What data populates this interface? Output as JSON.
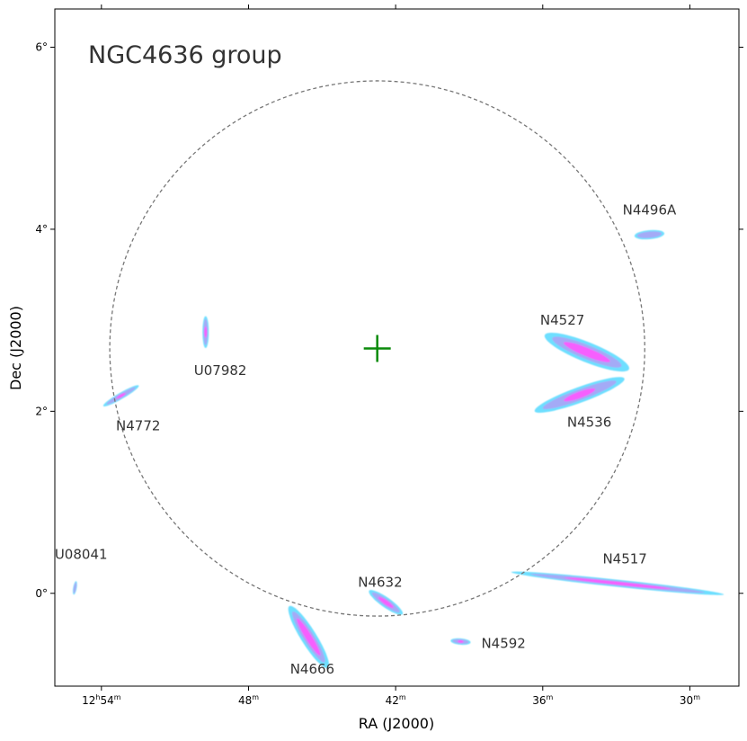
{
  "chart_data": {
    "type": "scatter",
    "title": "NGC4636 group",
    "xlabel": "RA (J2000)",
    "ylabel": "Dec (J2000)",
    "xlim_minutes": [
      55.9,
      28.0
    ],
    "ylim_deg": [
      -1.02,
      6.42
    ],
    "x_ticks": [
      {
        "value": 54,
        "label_main": "12",
        "label_h": "h",
        "label_min": "54",
        "label_m": "m"
      },
      {
        "value": 48,
        "label_main": "48",
        "label_h": "",
        "label_min": "",
        "label_m": "m"
      },
      {
        "value": 42,
        "label_main": "42",
        "label_h": "",
        "label_min": "",
        "label_m": "m"
      },
      {
        "value": 36,
        "label_main": "36",
        "label_h": "",
        "label_min": "",
        "label_m": "m"
      },
      {
        "value": 30,
        "label_main": "30",
        "label_h": "",
        "label_min": "",
        "label_m": "m"
      }
    ],
    "y_ticks": [
      {
        "value": 0,
        "label": "0°"
      },
      {
        "value": 2,
        "label": "2°"
      },
      {
        "value": 4,
        "label": "4°"
      },
      {
        "value": 6,
        "label": "6°"
      }
    ],
    "center": {
      "ra_min": 42.75,
      "dec": 2.69
    },
    "circle_radius_deg": 2.94,
    "colors": {
      "outer": "#87cefa",
      "mid": "#a8a8f5",
      "core": "#ff55ff",
      "cyan": "#66ddff",
      "circle": "#777777",
      "center_marker": "#0a8a0a"
    },
    "sources": [
      {
        "name": "N4496A",
        "ra_min": 31.65,
        "dec": 3.94,
        "angle": 5,
        "length": 0.33,
        "width": 0.1,
        "core": 0.0,
        "label_dx": 0.0,
        "label_dy": 0.22
      },
      {
        "name": "N4527",
        "ra_min": 34.2,
        "dec": 2.65,
        "angle": -22,
        "length": 1.0,
        "width": 0.22,
        "core": 0.55,
        "label_dx": 1.0,
        "label_dy": 0.3
      },
      {
        "name": "N4536",
        "ra_min": 34.5,
        "dec": 2.18,
        "angle": 20,
        "length": 1.05,
        "width": 0.17,
        "core": 0.35,
        "label_dx": -0.4,
        "label_dy": -0.35
      },
      {
        "name": "U07982",
        "ra_min": 49.75,
        "dec": 2.87,
        "angle": 90,
        "length": 0.35,
        "width": 0.07,
        "core": 0.35,
        "label_dx": -0.6,
        "label_dy": -0.47
      },
      {
        "name": "N4772",
        "ra_min": 53.2,
        "dec": 2.17,
        "angle": 30,
        "length": 0.45,
        "width": 0.07,
        "core": 0.25,
        "label_dx": -0.7,
        "label_dy": -0.38
      },
      {
        "name": "U08041",
        "ra_min": 55.08,
        "dec": 0.06,
        "angle": 80,
        "length": 0.15,
        "width": 0.04,
        "core": 0.0,
        "label_dx": -0.25,
        "label_dy": 0.32
      },
      {
        "name": "N4632",
        "ra_min": 42.4,
        "dec": -0.1,
        "angle": -35,
        "length": 0.45,
        "width": 0.11,
        "core": 0.45,
        "label_dx": 0.23,
        "label_dy": 0.17
      },
      {
        "name": "N4666",
        "ra_min": 45.55,
        "dec": -0.48,
        "angle": -58,
        "length": 0.8,
        "width": 0.17,
        "core": 0.6,
        "label_dx": -0.15,
        "label_dy": -0.4
      },
      {
        "name": "N4592",
        "ra_min": 39.35,
        "dec": -0.53,
        "angle": -5,
        "length": 0.22,
        "width": 0.07,
        "core": 0.3,
        "label_dx": -1.75,
        "label_dy": -0.07
      },
      {
        "name": "N4517",
        "ra_min": 32.95,
        "dec": 0.11,
        "angle": -6,
        "length": 2.35,
        "width": 0.08,
        "core": 0.5,
        "label_dx": -0.3,
        "label_dy": 0.22
      }
    ]
  }
}
